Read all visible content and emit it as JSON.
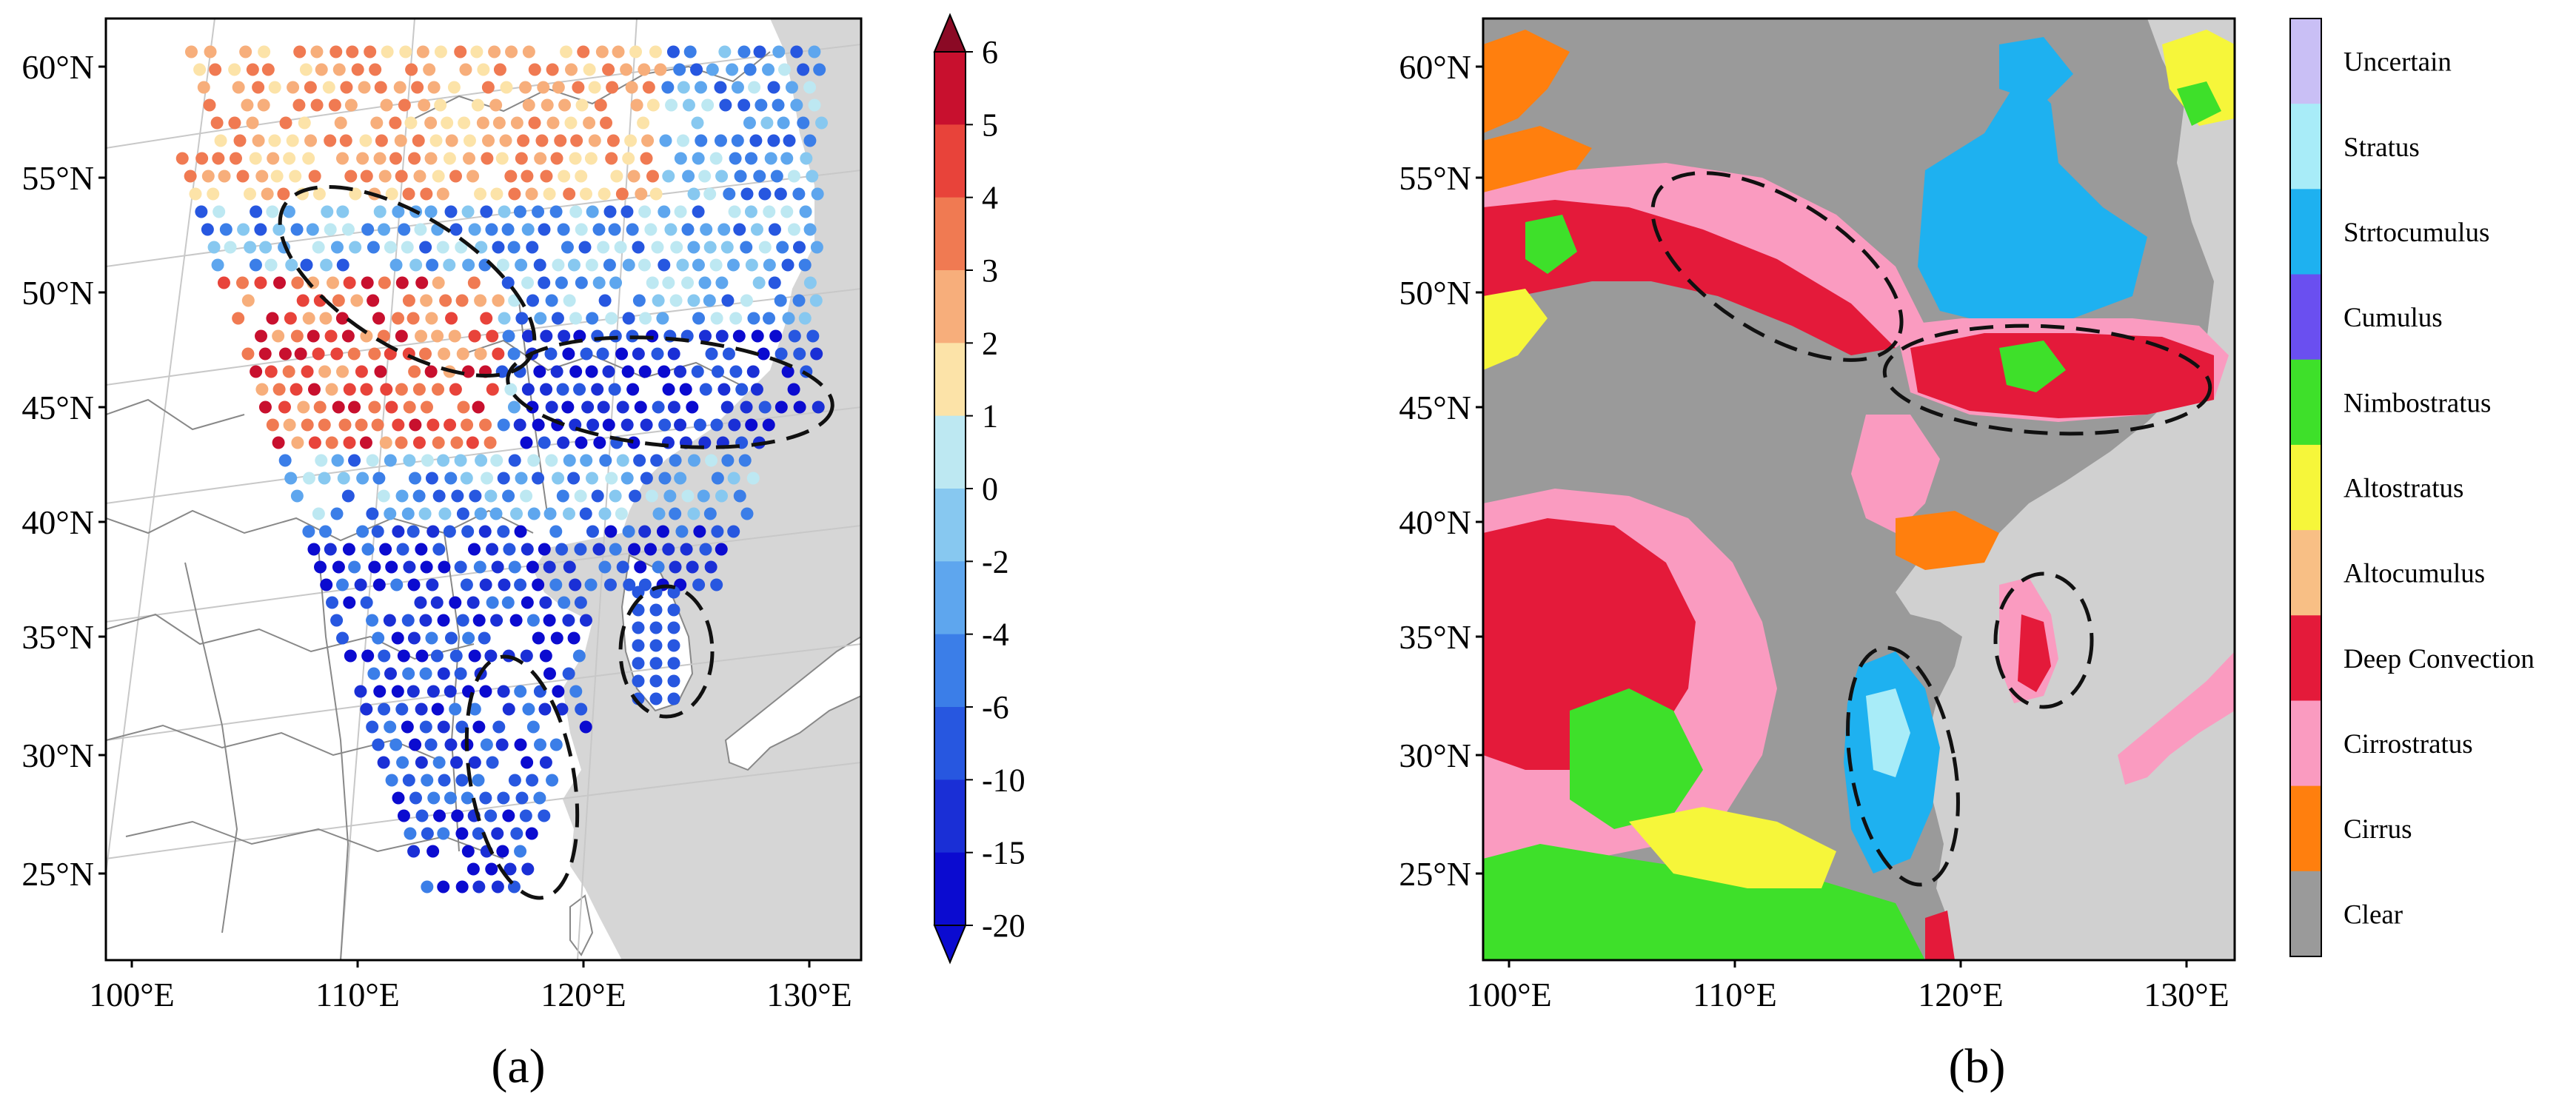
{
  "colors": {
    "land_a": "#ffffff",
    "sea": "#d6d6d6",
    "border": "#888888",
    "grid": "#c8c8c8",
    "ellipse": "#111111",
    "clear": "#9a9a9a"
  },
  "panel_a": {
    "label": "(a)",
    "lat_ticks": [
      "60°N",
      "55°N",
      "50°N",
      "45°N",
      "40°N",
      "35°N",
      "30°N",
      "25°N"
    ],
    "lon_ticks": [
      "100°E",
      "110°E",
      "120°E",
      "130°E"
    ],
    "colorbar": {
      "tick_labels": [
        "6",
        "5",
        "4",
        "3",
        "2",
        "1",
        "0",
        "-2",
        "-4",
        "-6",
        "-10",
        "-15",
        "-20"
      ],
      "colors": [
        "#8b0a25",
        "#c8102e",
        "#e8433a",
        "#f07a52",
        "#f7ae7b",
        "#fce3a8",
        "#bde8f2",
        "#87c8f0",
        "#5ea6ee",
        "#3b7ee8",
        "#2757e0",
        "#1a2fd6",
        "#0b0bd0"
      ]
    },
    "regions": [
      {
        "name": "ellipse-north-west",
        "data": "ellipse"
      },
      {
        "name": "ellipse-north-east",
        "data": "ellipse"
      },
      {
        "name": "ellipse-korea",
        "data": "ellipse"
      },
      {
        "name": "ellipse-east-coast",
        "data": "ellipse"
      }
    ]
  },
  "panel_b": {
    "label": "(b)",
    "lat_ticks": [
      "60°N",
      "55°N",
      "50°N",
      "45°N",
      "40°N",
      "35°N",
      "30°N",
      "25°N"
    ],
    "lon_ticks": [
      "100°E",
      "110°E",
      "120°E",
      "130°E"
    ],
    "legend": [
      {
        "label": "Uncertain",
        "color": "#c9bff5"
      },
      {
        "label": "Stratus",
        "color": "#a8ecf8"
      },
      {
        "label": "Strtocumulus",
        "color": "#1eb1f0"
      },
      {
        "label": "Cumulus",
        "color": "#6a4ff0"
      },
      {
        "label": "Nimbostratus",
        "color": "#3ee02a"
      },
      {
        "label": "Altostratus",
        "color": "#f6f63a"
      },
      {
        "label": "Altocumulus",
        "color": "#f8bf85"
      },
      {
        "label": "Deep Convection",
        "color": "#e41a3a"
      },
      {
        "label": "Cirrostratus",
        "color": "#fa9bc0"
      },
      {
        "label": "Cirrus",
        "color": "#ff7f0e"
      },
      {
        "label": "Clear",
        "color": "#9a9a9a"
      }
    ]
  }
}
